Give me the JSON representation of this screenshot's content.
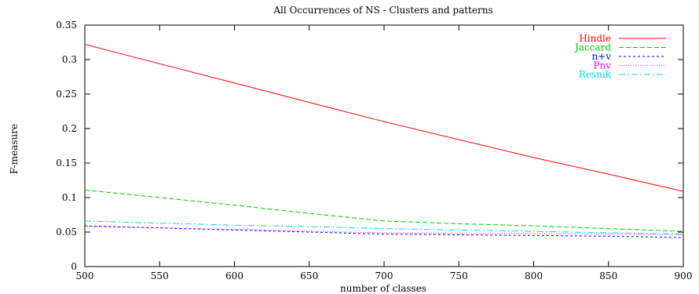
{
  "chart_data": {
    "type": "line",
    "title": "All Occurrences of NS - Clusters and patterns",
    "xlabel": "number of classes",
    "ylabel": "F-measure",
    "xlim": [
      500,
      900
    ],
    "ylim": [
      0,
      0.35
    ],
    "x_ticks": [
      500,
      550,
      600,
      650,
      700,
      750,
      800,
      850,
      900
    ],
    "y_ticks": [
      0,
      0.05,
      0.1,
      0.15,
      0.2,
      0.25,
      0.3,
      0.35
    ],
    "x_tick_labels": [
      "500",
      "550",
      "600",
      "650",
      "700",
      "750",
      "800",
      "850",
      "900"
    ],
    "y_tick_labels": [
      "0",
      "0.05",
      "0.1",
      "0.15",
      "0.2",
      "0.25",
      "0.3",
      "0.35"
    ],
    "grid": false,
    "legend_position": "top-right",
    "x": [
      500,
      550,
      600,
      650,
      700,
      750,
      800,
      850,
      900
    ],
    "series": [
      {
        "name": "Hindle",
        "color": "#ff0000",
        "dash": "solid",
        "values": [
          0.322,
          0.294,
          0.266,
          0.238,
          0.21,
          0.184,
          0.158,
          0.134,
          0.109
        ]
      },
      {
        "name": "Jaccard",
        "color": "#00cc00",
        "dash": "dashed",
        "values": [
          0.111,
          0.1,
          0.089,
          0.077,
          0.066,
          0.062,
          0.059,
          0.055,
          0.051
        ]
      },
      {
        "name": "n+v",
        "color": "#0000ff",
        "dash": "short-dashed",
        "values": [
          0.059,
          0.056,
          0.053,
          0.05,
          0.047,
          0.046,
          0.045,
          0.044,
          0.042
        ]
      },
      {
        "name": "Pnv",
        "color": "#ff00ff",
        "dash": "dotted",
        "values": [
          0.058,
          0.056,
          0.054,
          0.051,
          0.049,
          0.048,
          0.048,
          0.047,
          0.046
        ]
      },
      {
        "name": "Resnik",
        "color": "#00dddd",
        "dash": "dash-dot",
        "values": [
          0.066,
          0.063,
          0.06,
          0.058,
          0.055,
          0.053,
          0.051,
          0.049,
          0.047
        ]
      }
    ]
  }
}
